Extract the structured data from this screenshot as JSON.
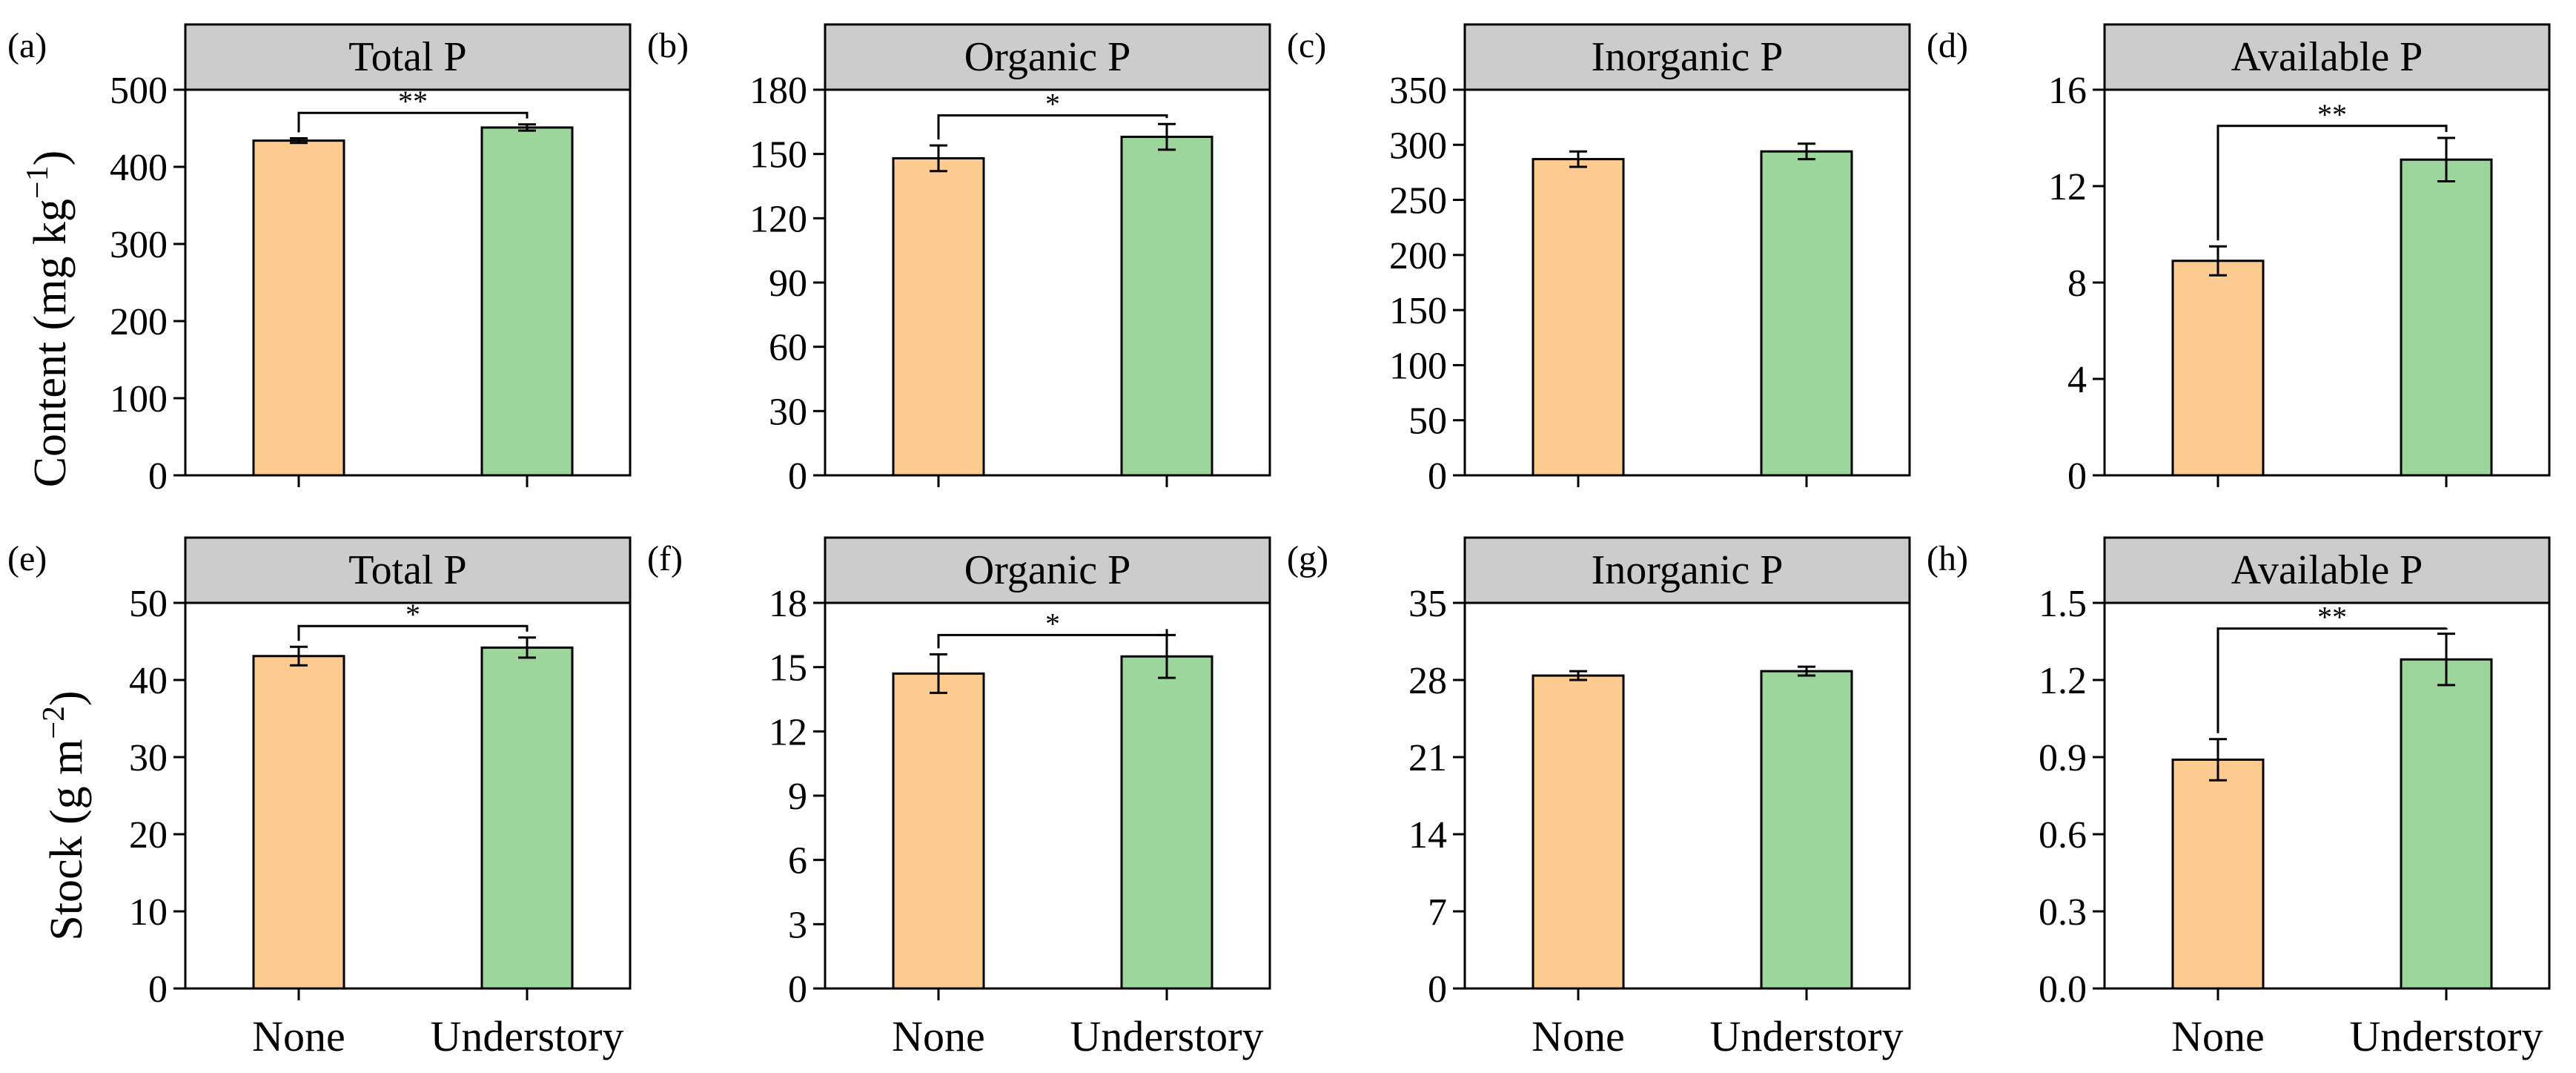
{
  "colors": {
    "none": "#fdcb90",
    "understory": "#9cd69a",
    "header": "#cccccc"
  },
  "row_labels": {
    "top": [
      "Content (mg kg",
      "−1",
      ")"
    ],
    "bottom": [
      "Stock (g m",
      "−2",
      ")"
    ]
  },
  "chart_data": [
    {
      "type": "bar",
      "panel": "(a)",
      "title": "Total P",
      "categories": [
        "None",
        "Understory"
      ],
      "values": [
        434,
        451
      ],
      "errors": [
        3,
        4
      ],
      "ylim": [
        0,
        500
      ],
      "yticks": [
        0,
        100,
        200,
        300,
        400,
        500
      ],
      "significance": "**",
      "bracket_level": 470
    },
    {
      "type": "bar",
      "panel": "(b)",
      "title": "Organic P",
      "categories": [
        "None",
        "Understory"
      ],
      "values": [
        148,
        158
      ],
      "errors": [
        6,
        6
      ],
      "ylim": [
        0,
        180
      ],
      "yticks": [
        0,
        30,
        60,
        90,
        120,
        150,
        180
      ],
      "significance": "*",
      "bracket_level": 168
    },
    {
      "type": "bar",
      "panel": "(c)",
      "title": "Inorganic P",
      "categories": [
        "None",
        "Understory"
      ],
      "values": [
        287,
        294
      ],
      "errors": [
        7,
        7
      ],
      "ylim": [
        0,
        350
      ],
      "yticks": [
        0,
        50,
        100,
        150,
        200,
        250,
        300,
        350
      ],
      "significance": "",
      "bracket_level": null
    },
    {
      "type": "bar",
      "panel": "(d)",
      "title": "Available P",
      "categories": [
        "None",
        "Understory"
      ],
      "values": [
        8.9,
        13.1
      ],
      "errors": [
        0.6,
        0.9
      ],
      "ylim": [
        0,
        16
      ],
      "yticks": [
        0,
        4,
        8,
        12,
        16
      ],
      "significance": "**",
      "bracket_level": 14.5
    },
    {
      "type": "bar",
      "panel": "(e)",
      "title": "Total P",
      "categories": [
        "None",
        "Understory"
      ],
      "values": [
        43.1,
        44.2
      ],
      "errors": [
        1.2,
        1.3
      ],
      "ylim": [
        0,
        50
      ],
      "yticks": [
        0,
        10,
        20,
        30,
        40,
        50
      ],
      "significance": "*",
      "bracket_level": 47
    },
    {
      "type": "bar",
      "panel": "(f)",
      "title": "Organic P",
      "categories": [
        "None",
        "Understory"
      ],
      "values": [
        14.7,
        15.5
      ],
      "errors": [
        0.9,
        1.0
      ],
      "ylim": [
        0,
        18
      ],
      "yticks": [
        0,
        3,
        6,
        9,
        12,
        15,
        18
      ],
      "significance": "*",
      "bracket_level": 16.5
    },
    {
      "type": "bar",
      "panel": "(g)",
      "title": "Inorganic P",
      "categories": [
        "None",
        "Understory"
      ],
      "values": [
        28.4,
        28.8
      ],
      "errors": [
        0.4,
        0.4
      ],
      "ylim": [
        0,
        35
      ],
      "yticks": [
        0,
        7,
        14,
        21,
        28,
        35
      ],
      "significance": "",
      "bracket_level": null
    },
    {
      "type": "bar",
      "panel": "(h)",
      "title": "Available P",
      "categories": [
        "None",
        "Understory"
      ],
      "values": [
        0.89,
        1.28
      ],
      "errors": [
        0.08,
        0.1
      ],
      "ylim": [
        0,
        1.5
      ],
      "yticks": [
        "0.0",
        "0.3",
        "0.6",
        "0.9",
        "1.2",
        "1.5"
      ],
      "significance": "**",
      "bracket_level": 1.4
    }
  ]
}
